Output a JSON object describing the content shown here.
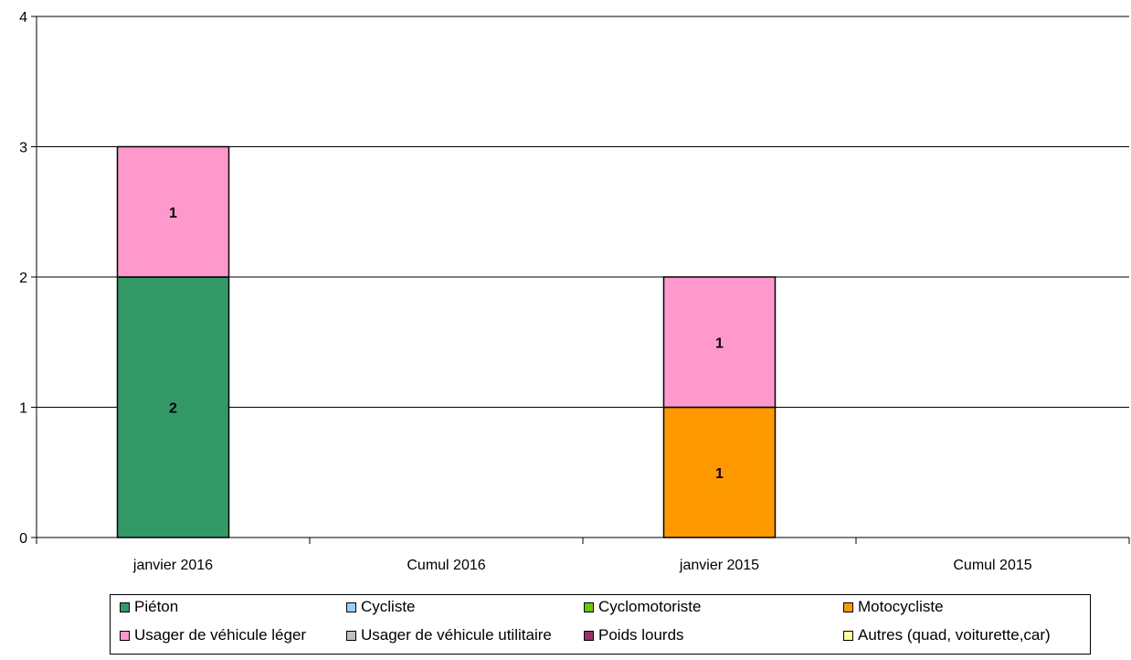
{
  "chart_data": {
    "type": "bar",
    "stacked": true,
    "categories": [
      "janvier 2016",
      "Cumul 2016",
      "janvier 2015",
      "Cumul 2015"
    ],
    "series": [
      {
        "name": "Piéton",
        "color": "#339966",
        "values": [
          2,
          0,
          0,
          0
        ]
      },
      {
        "name": "Cycliste",
        "color": "#99CCFF",
        "values": [
          0,
          0,
          0,
          0
        ]
      },
      {
        "name": "Cyclomotoriste",
        "color": "#66CC00",
        "values": [
          0,
          0,
          0,
          0
        ]
      },
      {
        "name": "Motocycliste",
        "color": "#FF9900",
        "values": [
          0,
          0,
          1,
          0
        ]
      },
      {
        "name": "Usager de véhicule léger",
        "color": "#FF99CC",
        "values": [
          1,
          0,
          1,
          0
        ]
      },
      {
        "name": "Usager de véhicule utilitaire",
        "color": "#C0C0C0",
        "values": [
          0,
          0,
          0,
          0
        ]
      },
      {
        "name": "Poids lourds",
        "color": "#993366",
        "values": [
          0,
          0,
          0,
          0
        ]
      },
      {
        "name": "Autres (quad, voiturette,car)",
        "color": "#FFFF99",
        "values": [
          0,
          0,
          0,
          0
        ]
      }
    ],
    "ylim": [
      0,
      4
    ],
    "yticks": [
      "0",
      "1",
      "2",
      "3",
      "4"
    ],
    "grid": true,
    "legend_position": "bottom",
    "title": "",
    "xlabel": "",
    "ylabel": ""
  }
}
